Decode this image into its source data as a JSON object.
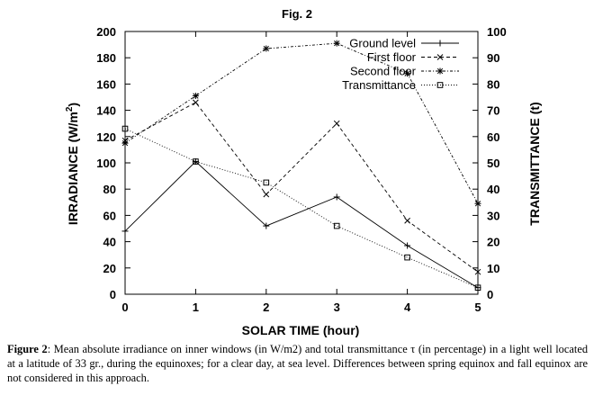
{
  "chart_data": {
    "type": "line",
    "title": "Fig. 2",
    "xlabel": "SOLAR TIME (hour)",
    "ylabel_left": "IRRADIANCE (W/m",
    "ylabel_left_sup": "2",
    "ylabel_left_end": ")",
    "ylabel_right": "TRANSMITTANCE (t)",
    "x": [
      0,
      1,
      2,
      3,
      4,
      5
    ],
    "xlim": [
      0,
      5
    ],
    "ylim_left": [
      0,
      200
    ],
    "ylim_right": [
      0,
      100
    ],
    "x_ticks": [
      "0",
      "1",
      "2",
      "3",
      "4",
      "5"
    ],
    "y_left_ticks": [
      "0",
      "20",
      "40",
      "60",
      "80",
      "100",
      "120",
      "140",
      "160",
      "180",
      "200"
    ],
    "y_right_ticks": [
      "0",
      "10",
      "20",
      "30",
      "40",
      "50",
      "60",
      "70",
      "80",
      "90",
      "100"
    ],
    "grid": false,
    "legend_position": "top-right",
    "series": [
      {
        "name": "Ground level",
        "axis": "left",
        "marker": "plus",
        "dash": "solid",
        "values": [
          48,
          101,
          52,
          74,
          37,
          5
        ]
      },
      {
        "name": "First floor",
        "axis": "left",
        "marker": "cross",
        "dash": "dashed",
        "values": [
          117,
          146,
          76,
          130,
          56,
          17
        ]
      },
      {
        "name": "Second floor",
        "axis": "left",
        "marker": "star",
        "dash": "dashdot",
        "values": [
          115,
          151,
          187,
          191,
          168,
          69
        ]
      },
      {
        "name": "Transmittance",
        "axis": "right",
        "marker": "square",
        "dash": "dotted",
        "values": [
          63,
          50.5,
          42.5,
          26,
          14,
          2.5
        ]
      }
    ]
  },
  "caption": {
    "label": "Figure 2",
    "text": ": Mean absolute irradiance on inner windows (in W/m2) and total transmittance τ (in percentage) in a light well located at a latitude of 33 gr., during the equinoxes; for a clear day, at sea level. Differences between spring equinox and fall equinox are not considered in this approach."
  }
}
